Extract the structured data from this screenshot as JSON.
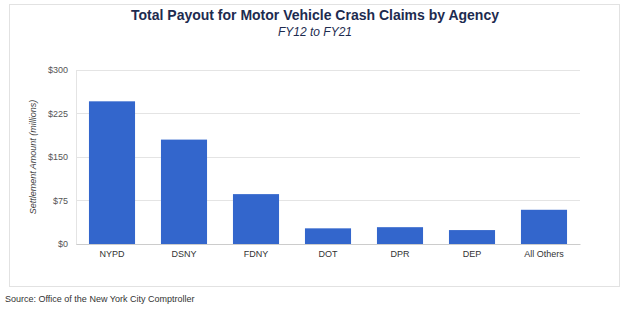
{
  "chart_data": {
    "type": "bar",
    "title": "Total Payout for Motor Vehicle Crash Claims by Agency",
    "subtitle": "FY12 to FY21",
    "y_label": "Settlement Amount (millions)",
    "source": "Source: Office of the New York City Comptroller",
    "categories": [
      "NYPD",
      "DSNY",
      "FDNY",
      "DOT",
      "DPR",
      "DEP",
      "All Others"
    ],
    "values": [
      246,
      180,
      86,
      27,
      29,
      24,
      59
    ],
    "color": "#3366cc",
    "ylim": [
      0,
      300
    ],
    "yticks": [
      {
        "value": 0,
        "label": "$0"
      },
      {
        "value": 75,
        "label": "$75"
      },
      {
        "value": 150,
        "label": "$150"
      },
      {
        "value": 225,
        "label": "$225"
      },
      {
        "value": 300,
        "label": "$300"
      }
    ],
    "grid": true
  }
}
